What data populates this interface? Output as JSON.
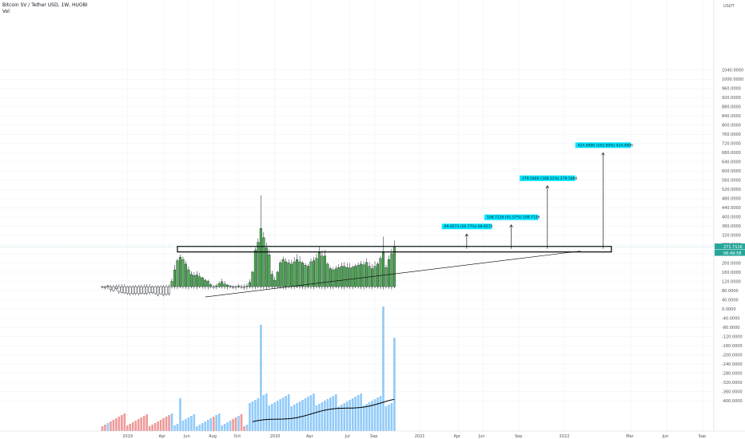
{
  "header": {
    "symbol_line": "Bitcoin SV / Tether USD, 1W, HUOBI",
    "indicator": "Vol",
    "currency": "USDT"
  },
  "chart_data": {
    "type": "candlestick",
    "title": "Bitcoin SV / Tether USD, 1W, HUOBI",
    "ylim": [
      -400,
      1040
    ],
    "y_ticks": [
      "1040.0000",
      "1000.0000",
      "960.0000",
      "920.0000",
      "880.0000",
      "840.0000",
      "800.0000",
      "760.0000",
      "720.0000",
      "680.0000",
      "640.0000",
      "600.0000",
      "560.0000",
      "520.0000",
      "480.0000",
      "440.0000",
      "400.0000",
      "360.0000",
      "320.0000",
      "280.0000",
      "240.0000",
      "200.0000",
      "160.0000",
      "120.0000",
      "80.0000",
      "40.0000",
      "0.0000",
      "-40.0000",
      "-80.0000",
      "-120.0000",
      "-160.0000",
      "-200.0000",
      "-240.0000",
      "-280.0000",
      "-320.0000",
      "-360.0000",
      "-400.0000"
    ],
    "x_ticks": [
      "2019",
      "Apr",
      "Jun",
      "Aug",
      "Oct",
      "2020",
      "Apr",
      "Jul",
      "Sep",
      "2021",
      "Apr",
      "Jun",
      "Sep",
      "2022",
      "Mar",
      "Jun",
      "Sep"
    ],
    "x_tick_weeks": [
      9,
      22,
      31,
      40,
      49,
      62,
      75,
      89,
      98,
      114,
      128,
      137,
      150,
      166,
      190,
      203,
      216
    ],
    "current_price_label": "271.7116",
    "countdown_label": "06:49:58",
    "close_prices": [
      95,
      92,
      100,
      85,
      80,
      88,
      75,
      72,
      70,
      68,
      66,
      66,
      67,
      66,
      68,
      67,
      68,
      72,
      70,
      68,
      62,
      66,
      60,
      64,
      66,
      120,
      170,
      210,
      225,
      215,
      195,
      170,
      150,
      145,
      148,
      140,
      135,
      125,
      120,
      105,
      95,
      100,
      110,
      118,
      108,
      104,
      100,
      96,
      94,
      100,
      96,
      93,
      100,
      115,
      160,
      255,
      290,
      350,
      310,
      265,
      235,
      150,
      125,
      160,
      200,
      215,
      205,
      200,
      195,
      205,
      215,
      205,
      200,
      190,
      185,
      205,
      210,
      220,
      245,
      230,
      230,
      195,
      175,
      170,
      175,
      180,
      185,
      185,
      180,
      178,
      182,
      186,
      190,
      195,
      192,
      202,
      185,
      175,
      185,
      195,
      220,
      245,
      180,
      215,
      240,
      271
    ],
    "volume_ticks_bars": 106,
    "annotations": [
      {
        "label": "69.6573 (26.77%) 69.6573",
        "base": 262,
        "top": 326
      },
      {
        "label": "108.7126 (41.57%) 108.7126",
        "base": 262,
        "top": 366
      },
      {
        "label": "279.5466 (108.31%) 279.5466",
        "base": 262,
        "top": 536
      },
      {
        "label": "424.4996 (163.89%) 424.4996",
        "base": 262,
        "top": 680
      }
    ],
    "resistance_band": [
      248,
      272
    ],
    "trendline": {
      "from_week": 37,
      "from_value": 52,
      "to_week": 172,
      "to_value": 252
    }
  },
  "colors": {
    "up": "#26a69a",
    "up_body": "#4caf50",
    "down": "#ffffff",
    "wick": "#131722",
    "vol_up": "#90caf9",
    "vol_down": "#ef9a9a",
    "accent": "#00e5ff",
    "ma": "#000000"
  }
}
